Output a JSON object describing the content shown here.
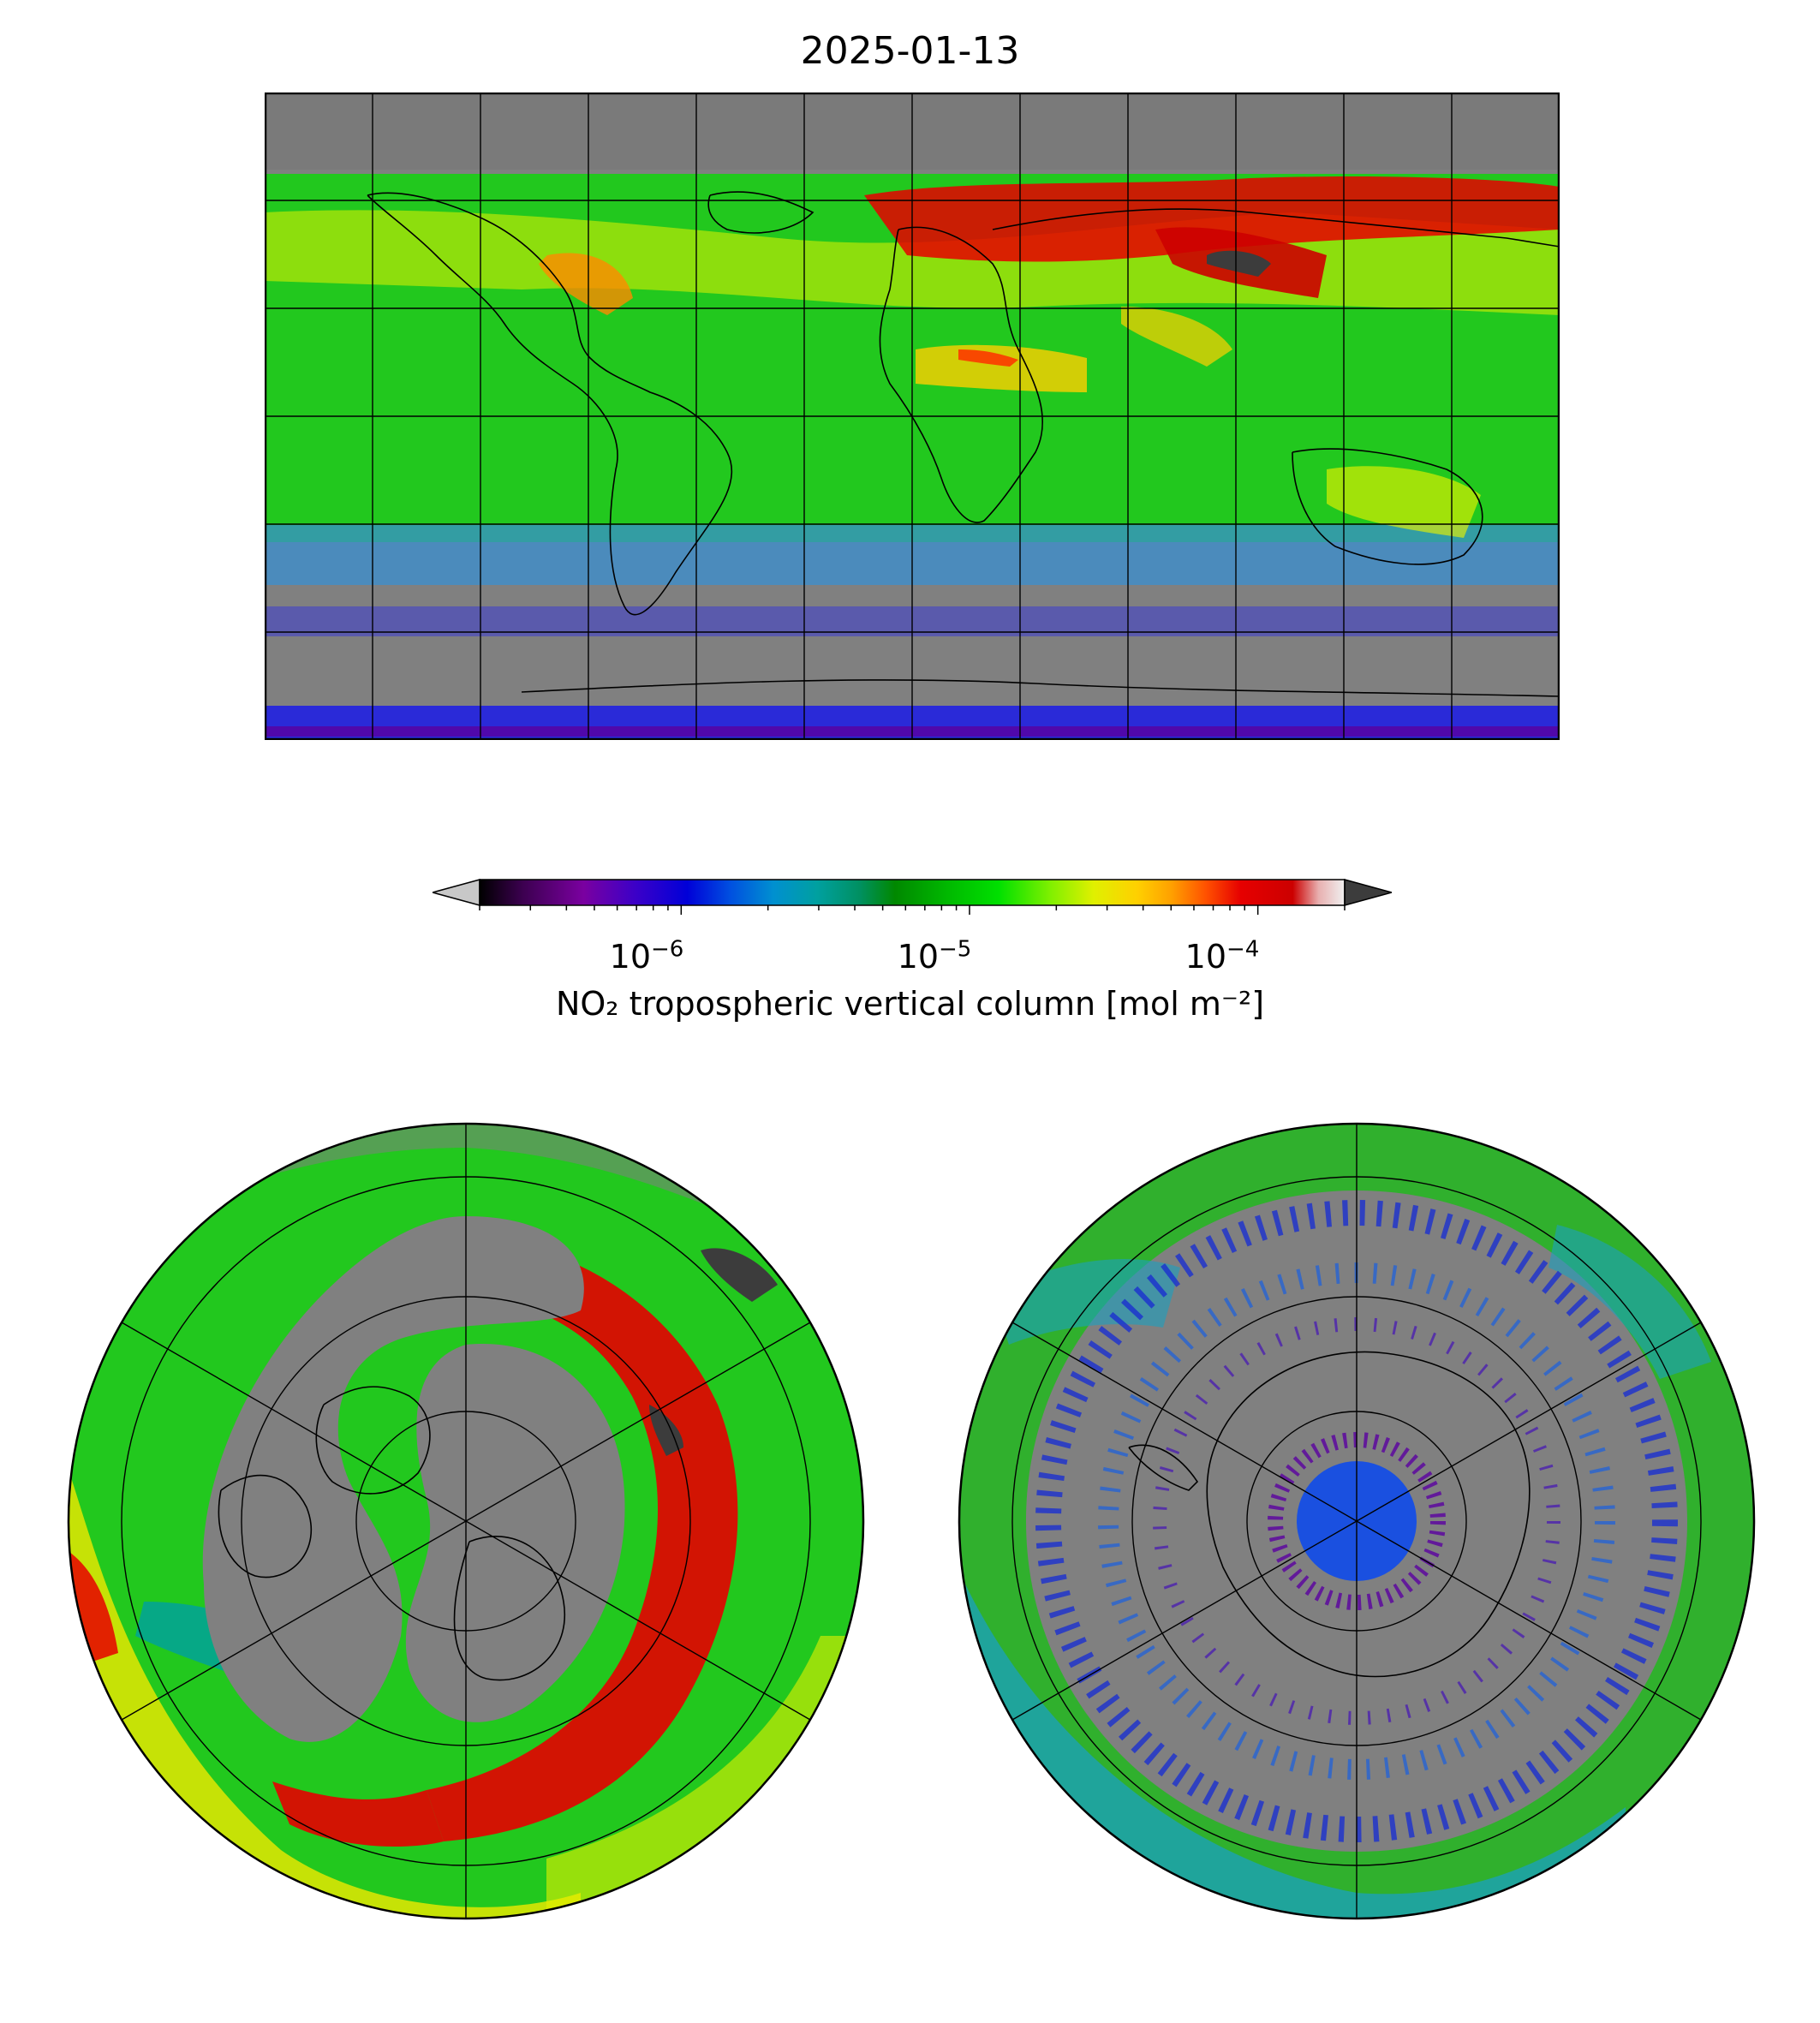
{
  "figure": {
    "title": "2025-01-13"
  },
  "colorbar": {
    "label": "NO₂ tropospheric vertical column [mol m⁻²]",
    "scale": "log",
    "range": [
      2e-07,
      0.0002
    ],
    "extend": "both",
    "under_color": "#c8c8c8",
    "over_color": "#3c3c3c",
    "ticks": [
      {
        "base": "10",
        "exp": "−6"
      },
      {
        "base": "10",
        "exp": "−5"
      },
      {
        "base": "10",
        "exp": "−4"
      }
    ],
    "colormap": [
      "#000000",
      "#3c0050",
      "#7a00a0",
      "#3c00c8",
      "#0000d8",
      "#0050e0",
      "#0090d0",
      "#00a0a0",
      "#009060",
      "#008800",
      "#00b800",
      "#00e000",
      "#80f000",
      "#e0f000",
      "#ffd000",
      "#ffa000",
      "#ff5000",
      "#e60000",
      "#cc0000",
      "#e8b0b0",
      "#f0f0f0"
    ]
  },
  "maps": {
    "global": {
      "projection": "equirectangular",
      "missing_color": "#808080"
    },
    "north_polar": {
      "projection": "north-polar-stereographic",
      "missing_color": "#808080"
    },
    "south_polar": {
      "projection": "south-polar-stereographic",
      "missing_color": "#808080"
    }
  }
}
